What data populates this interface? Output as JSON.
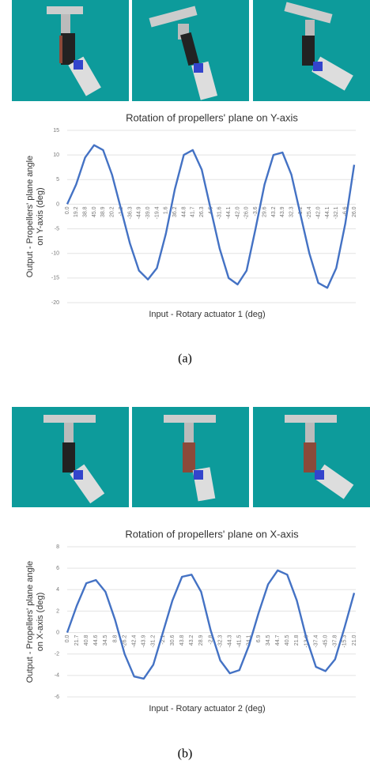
{
  "chart_data": [
    {
      "type": "line",
      "title": "Rotation of propellers' plane on Y-axis",
      "xlabel": "Input - Rotary actuator 1 (deg)",
      "ylabel": [
        "Output - Propellers' plane angle",
        "on Y-axis (deg)"
      ],
      "caption": "(a)",
      "categories": [
        "0.0",
        "19.2",
        "38.8",
        "45.0",
        "38.9",
        "20.2",
        "-1.2",
        "-36.3",
        "-44.9",
        "-39.0",
        "-19.4",
        "1.6",
        "36.2",
        "44.8",
        "41.7",
        "26.3",
        "4.5",
        "-31.6",
        "-44.1",
        "-42.0",
        "-26.0",
        "-3.6",
        "29.6",
        "43.2",
        "43.9",
        "32.3",
        "1.2",
        "-25.4",
        "-42.0",
        "-44.1",
        "-32.1",
        "-6.6",
        "26.0"
      ],
      "values": [
        0,
        4,
        9.5,
        12,
        11,
        6,
        -1,
        -8,
        -13.5,
        -15.3,
        -13,
        -6,
        3,
        10,
        11,
        7,
        -1,
        -9,
        -15,
        -16.3,
        -13.5,
        -5,
        4,
        10,
        10.5,
        6,
        -2,
        -10,
        -16,
        -17,
        -13,
        -4,
        8
      ],
      "color": "#4472c4",
      "ylim": [
        -20,
        15
      ],
      "yticks": [
        -20,
        -15,
        -10,
        -5,
        0,
        5,
        10,
        15
      ],
      "grid": true
    },
    {
      "type": "line",
      "title": "Rotation of propellers' plane on X-axis",
      "xlabel": "Input - Rotary actuator 2 (deg)",
      "ylabel": [
        "Output - Propellers' plane angle",
        "on X-axis (deg)"
      ],
      "caption": "(b)",
      "categories": [
        "0.0",
        "21.7",
        "40.8",
        "44.6",
        "34.5",
        "8.8",
        "-26.2",
        "-42.4",
        "-43.9",
        "-31.2",
        "-2.1",
        "30.6",
        "43.8",
        "43.2",
        "28.9",
        "-2.8",
        "-32.3",
        "-44.3",
        "-41.5",
        "-24.1",
        "6.9",
        "34.5",
        "44.7",
        "40.5",
        "21.8",
        "-13.6",
        "-37.4",
        "-45.0",
        "-37.8",
        "-15.3",
        "21.0"
      ],
      "values": [
        0,
        2.5,
        4.6,
        4.9,
        3.8,
        1.2,
        -2,
        -4.1,
        -4.3,
        -3,
        0,
        3,
        5.2,
        5.4,
        3.8,
        0.2,
        -2.6,
        -3.8,
        -3.5,
        -1.2,
        1.8,
        4.5,
        5.8,
        5.4,
        3,
        -0.5,
        -3.2,
        -3.6,
        -2.5,
        0.5,
        3.7
      ],
      "color": "#4472c4",
      "ylim": [
        -6,
        8
      ],
      "yticks": [
        -6,
        -4,
        -2,
        0,
        2,
        4,
        6,
        8
      ],
      "grid": true
    }
  ]
}
